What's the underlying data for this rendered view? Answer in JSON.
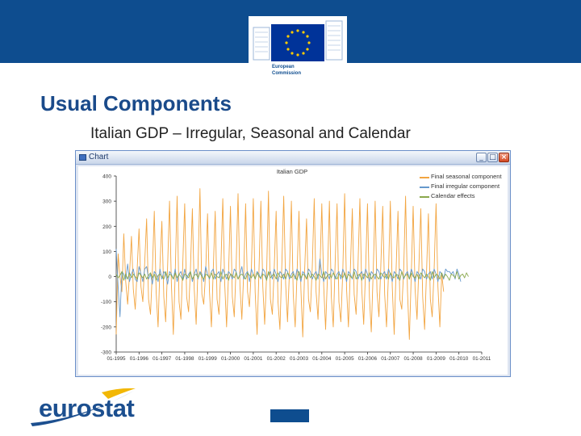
{
  "header": {
    "logo_line1": "European",
    "logo_line2": "Commission"
  },
  "slide": {
    "title": "Usual Components",
    "subtitle": "Italian GDP – Irregular, Seasonal and Calendar"
  },
  "window": {
    "title": "Chart",
    "minimize_glyph": "_",
    "maximize_glyph": "□",
    "close_glyph": "×"
  },
  "footer": {
    "logo_text": "eurostat"
  },
  "colors": {
    "seasonal": "#f2a541",
    "irregular": "#6699cc",
    "calendar": "#8aa84d",
    "brand_blue": "#0e4d8f"
  },
  "chart_data": {
    "type": "line",
    "title": "Italian GDP",
    "xlabel": "",
    "ylabel": "",
    "ylim": [
      -300,
      400
    ],
    "yticks": [
      -300,
      -200,
      -100,
      0,
      100,
      200,
      300,
      400
    ],
    "legend_position": "top-right",
    "x_tick_labels": [
      "01-1995",
      "01-1996",
      "01-1997",
      "01-1998",
      "01-1999",
      "01-2000",
      "01-2001",
      "01-2002",
      "01-2003",
      "01-2004",
      "01-2005",
      "01-2006",
      "01-2007",
      "01-2008",
      "01-2009",
      "01-2010",
      "01-2011"
    ],
    "x_start": 1995.0,
    "x_step": 0.08333,
    "series": [
      {
        "name": "Final seasonal component",
        "color": "#f2a541",
        "values": [
          -230,
          90,
          0,
          -60,
          170,
          -20,
          -110,
          10,
          160,
          -50,
          -130,
          30,
          190,
          -40,
          -100,
          60,
          230,
          -90,
          -150,
          20,
          260,
          -60,
          -200,
          50,
          220,
          -80,
          -180,
          40,
          300,
          -30,
          -230,
          10,
          320,
          -100,
          -170,
          60,
          290,
          -80,
          -140,
          30,
          270,
          -50,
          -190,
          40,
          350,
          -70,
          -110,
          20,
          250,
          -60,
          -200,
          30,
          260,
          -90,
          -150,
          50,
          310,
          -30,
          -200,
          10,
          280,
          -80,
          -160,
          40,
          330,
          -40,
          -170,
          20,
          290,
          -60,
          -120,
          30,
          310,
          -60,
          -230,
          20,
          300,
          -40,
          -190,
          10,
          340,
          -90,
          -150,
          30,
          260,
          -100,
          -210,
          50,
          320,
          -30,
          -180,
          20,
          300,
          -70,
          -200,
          10,
          260,
          -50,
          -240,
          30,
          230,
          -90,
          -140,
          40,
          310,
          -60,
          -170,
          20,
          290,
          -40,
          -210,
          10,
          300,
          -80,
          -200,
          50,
          290,
          -100,
          -180,
          20,
          330,
          -50,
          -200,
          30,
          270,
          -70,
          -150,
          40,
          310,
          -50,
          -190,
          30,
          290,
          -80,
          -220,
          20,
          300,
          -60,
          -160,
          40,
          280,
          -70,
          -200,
          10,
          300,
          -40,
          -230,
          20,
          260,
          -90,
          -130,
          30,
          320,
          -60,
          -250,
          10,
          280,
          -50,
          -170,
          40,
          270,
          -80,
          -210,
          20,
          250,
          -90,
          -160,
          30,
          290,
          -40,
          -200,
          10,
          -60
        ]
      },
      {
        "name": "Final irregular component",
        "color": "#6699cc",
        "values": [
          110,
          -40,
          -160,
          20,
          10,
          -10,
          50,
          -20,
          10,
          30,
          -10,
          -20,
          40,
          10,
          -20,
          30,
          40,
          -10,
          10,
          -30,
          20,
          10,
          -20,
          30,
          -10,
          20,
          10,
          -30,
          20,
          10,
          -10,
          30,
          -20,
          10,
          20,
          -10,
          30,
          -10,
          10,
          20,
          -20,
          10,
          30,
          -10,
          20,
          10,
          -20,
          40,
          10,
          -10,
          20,
          30,
          -10,
          10,
          20,
          -20,
          30,
          10,
          -10,
          20,
          10,
          -10,
          30,
          20,
          -10,
          10,
          40,
          -10,
          10,
          20,
          -20,
          30,
          10,
          -10,
          20,
          10,
          -10,
          30,
          20,
          -10,
          10,
          20,
          -10,
          30,
          10,
          -20,
          20,
          10,
          -10,
          30,
          20,
          -10,
          10,
          20,
          -10,
          30,
          10,
          -20,
          20,
          10,
          -10,
          30,
          20,
          -10,
          10,
          20,
          -10,
          70,
          10,
          -20,
          20,
          10,
          -10,
          30,
          20,
          -10,
          10,
          20,
          -10,
          30,
          10,
          -20,
          20,
          10,
          -10,
          30,
          20,
          -10,
          10,
          20,
          -10,
          30,
          10,
          -20,
          20,
          10,
          -10,
          30,
          20,
          -10,
          10,
          20,
          -10,
          30,
          10,
          -20,
          20,
          10,
          -10,
          30,
          20,
          -10,
          10,
          20,
          -10,
          30,
          10,
          -20,
          20,
          10,
          -10,
          30,
          20,
          -10,
          10,
          20,
          -10,
          30,
          10,
          -20,
          20,
          10,
          -10,
          30,
          20,
          20,
          10,
          20,
          -10,
          30,
          10,
          -20
        ]
      },
      {
        "name": "Calendar effects",
        "color": "#8aa84d",
        "values": [
          10,
          -5,
          5,
          20,
          -15,
          10,
          -10,
          15,
          -5,
          10,
          0,
          -10,
          15,
          5,
          -5,
          10,
          -10,
          5,
          15,
          -5,
          10,
          -15,
          5,
          10,
          0,
          -10,
          20,
          -5,
          10,
          5,
          -10,
          15,
          -5,
          10,
          0,
          -15,
          10,
          5,
          -5,
          20,
          -10,
          5,
          10,
          -5,
          15,
          0,
          -10,
          10,
          5,
          -5,
          15,
          -10,
          10,
          0,
          -5,
          20,
          -10,
          5,
          10,
          -15,
          10,
          5,
          -5,
          15,
          -10,
          5,
          10,
          0,
          -10,
          15,
          5,
          -5,
          10,
          -10,
          15,
          0,
          -5,
          10,
          5,
          -15,
          20,
          -5,
          5,
          10,
          -10,
          15,
          0,
          -5,
          10,
          -10,
          15,
          5,
          -5,
          10,
          0,
          -15,
          20,
          -5,
          10,
          5,
          -10,
          15,
          -5,
          10,
          0,
          -15,
          10,
          5,
          -5,
          20,
          -10,
          5,
          10,
          -5,
          15,
          0,
          -10,
          10,
          5,
          -5,
          15,
          -10,
          10,
          0,
          -5,
          20,
          -10,
          5,
          10,
          -15,
          10,
          5,
          -5,
          15,
          -10,
          5,
          10,
          0,
          -10,
          15,
          5,
          -5,
          10,
          -10,
          15,
          0,
          -5,
          10,
          5,
          -15,
          20,
          -5,
          5,
          10,
          -10,
          15,
          0,
          -5,
          10,
          -10,
          15,
          5,
          -5,
          10,
          0,
          -15,
          20,
          -5,
          10,
          5,
          -10,
          15,
          -5,
          10,
          0,
          -15,
          10,
          5,
          -5,
          20,
          -10,
          5,
          10,
          -5,
          15,
          0
        ]
      }
    ]
  }
}
